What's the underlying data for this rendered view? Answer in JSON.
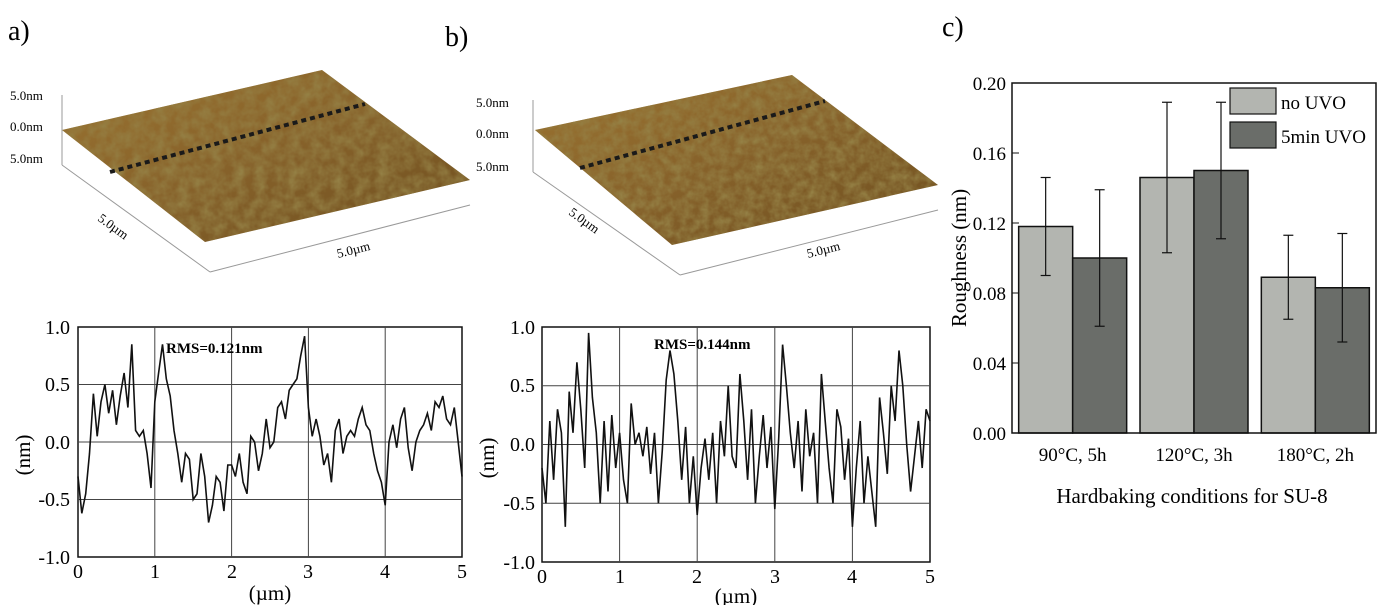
{
  "panels": {
    "a": {
      "label": "a)",
      "afm": {
        "z_top": "5.0nm",
        "z_mid": "0.0nm",
        "z_bot": "5.0nm",
        "y_size": "5.0µm",
        "x_size": "5.0µm"
      },
      "profile": {
        "rms": "RMS=0.121nm",
        "ylabel": "(nm)",
        "xlabel": "(µm)",
        "yticks": [
          "1.0",
          "0.5",
          "0.0",
          "-0.5",
          "-1.0"
        ],
        "xticks": [
          "0",
          "1",
          "2",
          "3",
          "4",
          "5"
        ]
      }
    },
    "b": {
      "label": "b)",
      "afm": {
        "z_top": "5.0nm",
        "z_mid": "0.0nm",
        "z_bot": "5.0nm",
        "y_size": "5.0µm",
        "x_size": "5.0µm"
      },
      "profile": {
        "rms": "RMS=0.144nm",
        "ylabel": "(nm)",
        "xlabel": "(µm)",
        "yticks": [
          "1.0",
          "0.5",
          "0.0",
          "-0.5",
          "-1.0"
        ],
        "xticks": [
          "0",
          "1",
          "2",
          "3",
          "4",
          "5"
        ]
      }
    },
    "c": {
      "label": "c)"
    }
  },
  "colors": {
    "afm_dark": "#4a3310",
    "afm_mid": "#8a6426",
    "afm_light": "#b59a3a",
    "bar_no_uvo": "#b3b5b0",
    "bar_uvo": "#6a6d69",
    "line": "#111111"
  },
  "chart_data": [
    {
      "type": "line",
      "panel": "a",
      "xlabel": "(µm)",
      "ylabel": "(nm)",
      "xlim": [
        0,
        5
      ],
      "ylim": [
        -1.0,
        1.0
      ],
      "annotation": "RMS=0.121nm",
      "grid": true,
      "x": [
        0,
        0.05,
        0.1,
        0.15,
        0.2,
        0.25,
        0.3,
        0.35,
        0.4,
        0.45,
        0.5,
        0.55,
        0.6,
        0.65,
        0.7,
        0.75,
        0.8,
        0.85,
        0.9,
        0.95,
        1.0,
        1.05,
        1.1,
        1.15,
        1.2,
        1.25,
        1.3,
        1.35,
        1.4,
        1.45,
        1.5,
        1.55,
        1.6,
        1.65,
        1.7,
        1.75,
        1.8,
        1.85,
        1.9,
        1.95,
        2.0,
        2.05,
        2.1,
        2.15,
        2.2,
        2.25,
        2.3,
        2.35,
        2.4,
        2.45,
        2.5,
        2.55,
        2.6,
        2.65,
        2.7,
        2.75,
        2.8,
        2.85,
        2.9,
        2.95,
        3.0,
        3.05,
        3.1,
        3.15,
        3.2,
        3.25,
        3.3,
        3.35,
        3.4,
        3.45,
        3.5,
        3.55,
        3.6,
        3.65,
        3.7,
        3.75,
        3.8,
        3.85,
        3.9,
        3.95,
        4.0,
        4.05,
        4.1,
        4.15,
        4.2,
        4.25,
        4.3,
        4.35,
        4.4,
        4.45,
        4.5,
        4.55,
        4.6,
        4.65,
        4.7,
        4.75,
        4.8,
        4.85,
        4.9,
        4.95,
        5.0
      ],
      "y": [
        -0.3,
        -0.62,
        -0.45,
        -0.1,
        0.42,
        0.05,
        0.35,
        0.5,
        0.25,
        0.45,
        0.15,
        0.4,
        0.6,
        0.3,
        0.85,
        0.1,
        0.05,
        0.1,
        -0.1,
        -0.4,
        0.35,
        0.6,
        0.85,
        0.55,
        0.4,
        0.1,
        -0.1,
        -0.35,
        -0.1,
        -0.15,
        -0.5,
        -0.45,
        -0.1,
        -0.3,
        -0.7,
        -0.55,
        -0.3,
        -0.35,
        -0.6,
        -0.2,
        -0.2,
        -0.3,
        -0.1,
        -0.35,
        -0.45,
        0.05,
        0.0,
        -0.25,
        -0.1,
        0.2,
        -0.05,
        0.0,
        0.3,
        0.35,
        0.2,
        0.45,
        0.5,
        0.55,
        0.75,
        0.92,
        0.3,
        0.05,
        0.2,
        0.05,
        -0.2,
        -0.1,
        -0.35,
        0.1,
        0.2,
        -0.1,
        0.05,
        0.1,
        0.05,
        0.2,
        0.3,
        0.15,
        0.1,
        -0.1,
        -0.25,
        -0.35,
        -0.55,
        0.0,
        0.15,
        -0.05,
        0.2,
        0.3,
        -0.05,
        -0.25,
        0.0,
        0.1,
        0.15,
        0.25,
        0.1,
        0.35,
        0.3,
        0.4,
        0.2,
        0.15,
        0.3,
        0.0,
        -0.3
      ]
    },
    {
      "type": "line",
      "panel": "b",
      "xlabel": "(µm)",
      "ylabel": "(nm)",
      "xlim": [
        0,
        5
      ],
      "ylim": [
        -1.0,
        1.0
      ],
      "annotation": "RMS=0.144nm",
      "grid": true,
      "x": [
        0,
        0.05,
        0.1,
        0.15,
        0.2,
        0.25,
        0.3,
        0.35,
        0.4,
        0.45,
        0.5,
        0.55,
        0.6,
        0.65,
        0.7,
        0.75,
        0.8,
        0.85,
        0.9,
        0.95,
        1.0,
        1.05,
        1.1,
        1.15,
        1.2,
        1.25,
        1.3,
        1.35,
        1.4,
        1.45,
        1.5,
        1.55,
        1.6,
        1.65,
        1.7,
        1.75,
        1.8,
        1.85,
        1.9,
        1.95,
        2.0,
        2.05,
        2.1,
        2.15,
        2.2,
        2.25,
        2.3,
        2.35,
        2.4,
        2.45,
        2.5,
        2.55,
        2.6,
        2.65,
        2.7,
        2.75,
        2.8,
        2.85,
        2.9,
        2.95,
        3.0,
        3.05,
        3.1,
        3.15,
        3.2,
        3.25,
        3.3,
        3.35,
        3.4,
        3.45,
        3.5,
        3.55,
        3.6,
        3.65,
        3.7,
        3.75,
        3.8,
        3.85,
        3.9,
        3.95,
        4.0,
        4.05,
        4.1,
        4.15,
        4.2,
        4.25,
        4.3,
        4.35,
        4.4,
        4.45,
        4.5,
        4.55,
        4.6,
        4.65,
        4.7,
        4.75,
        4.8,
        4.85,
        4.9,
        4.95,
        5.0
      ],
      "y": [
        -0.2,
        -0.5,
        0.2,
        -0.3,
        0.3,
        0.1,
        -0.7,
        0.45,
        0.1,
        0.7,
        0.3,
        -0.2,
        0.95,
        0.4,
        0.1,
        -0.5,
        0.2,
        -0.4,
        0.25,
        -0.2,
        0.1,
        -0.3,
        -0.5,
        0.35,
        0.0,
        0.1,
        -0.1,
        0.15,
        -0.25,
        0.1,
        -0.5,
        -0.05,
        0.55,
        0.8,
        0.6,
        0.2,
        -0.3,
        0.15,
        -0.5,
        -0.1,
        -0.6,
        -0.2,
        0.05,
        -0.3,
        0.1,
        -0.5,
        0.2,
        -0.1,
        0.5,
        -0.1,
        -0.2,
        0.6,
        0.2,
        -0.3,
        0.3,
        -0.5,
        -0.1,
        0.25,
        -0.2,
        0.15,
        -0.55,
        0.05,
        0.85,
        0.5,
        0.1,
        -0.2,
        0.2,
        -0.4,
        0.3,
        -0.1,
        0.1,
        -0.5,
        0.6,
        0.2,
        -0.2,
        -0.5,
        0.3,
        0.15,
        -0.3,
        0.05,
        -0.7,
        -0.2,
        0.2,
        -0.5,
        -0.1,
        -0.4,
        -0.7,
        0.4,
        0.1,
        -0.25,
        0.5,
        0.2,
        0.8,
        0.5,
        0.0,
        -0.4,
        -0.1,
        0.2,
        -0.2,
        0.3,
        0.2
      ]
    },
    {
      "type": "bar",
      "panel": "c",
      "xlabel": "Hardbaking conditions for SU-8",
      "ylabel": "Roughness (nm)",
      "ylim": [
        0,
        0.2
      ],
      "yticks": [
        "0.00",
        "0.04",
        "0.08",
        "0.12",
        "0.16",
        "0.20"
      ],
      "categories": [
        "90°C, 5h",
        "120°C, 3h",
        "180°C, 2h"
      ],
      "legend_position": "top-right",
      "series": [
        {
          "name": "no UVO",
          "values": [
            0.118,
            0.146,
            0.089
          ],
          "errors": [
            0.028,
            0.043,
            0.024
          ]
        },
        {
          "name": "5min UVO",
          "values": [
            0.1,
            0.15,
            0.083
          ],
          "errors": [
            0.039,
            0.039,
            0.031
          ]
        }
      ]
    }
  ]
}
